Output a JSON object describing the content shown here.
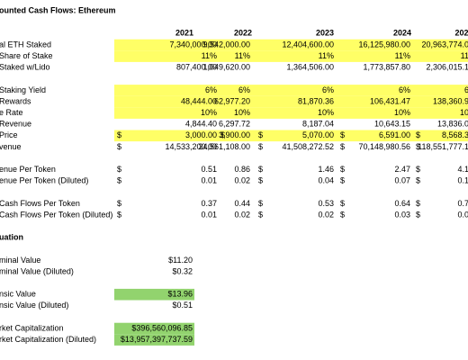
{
  "title": "ounted Cash Flows: Ethereum",
  "years": [
    "2021",
    "2022",
    "2023",
    "2024",
    "202"
  ],
  "rows": [
    {
      "label": "al ETH Staked",
      "highlight": "#ffff66",
      "dollars": [
        null,
        null,
        null,
        null,
        null
      ],
      "cells": [
        "7,340,000.00",
        "9,542,000.00",
        "12,404,600.00",
        "16,125,980.00",
        "20,963,774.0"
      ]
    },
    {
      "label": "Share of Stake",
      "highlight": "#ffff66",
      "dollars": [
        null,
        null,
        null,
        null,
        null
      ],
      "cells": [
        "11%",
        "11%",
        "11%",
        "11%",
        "11"
      ]
    },
    {
      "label": "Staked w/Lido",
      "dollars": [
        null,
        null,
        null,
        null,
        null
      ],
      "cells": [
        "807,400.00",
        "1,049,620.00",
        "1,364,506.00",
        "1,773,857.80",
        "2,306,015.1"
      ]
    },
    {
      "label": "Staking Yield",
      "highlight": "#ffff66",
      "dollars": [
        null,
        null,
        null,
        null,
        null
      ],
      "cells": [
        "6%",
        "6%",
        "6%",
        "6%",
        "6"
      ]
    },
    {
      "label": "Rewards",
      "highlight": "#ffff66",
      "dollars": [
        null,
        null,
        null,
        null,
        null
      ],
      "cells": [
        "48,444.00",
        "62,977.20",
        "81,870.36",
        "106,431.47",
        "138,360.9"
      ]
    },
    {
      "label": "e Rate",
      "highlight": "#ffff66",
      "dollars": [
        null,
        null,
        null,
        null,
        null
      ],
      "cells": [
        "10%",
        "10%",
        "10%",
        "10%",
        "10"
      ]
    },
    {
      "label": "Revenue",
      "dollars": [
        null,
        null,
        null,
        null,
        null
      ],
      "cells": [
        "4,844.40",
        "6,297.72",
        "8,187.04",
        "10,643.15",
        "13,836.0"
      ]
    },
    {
      "label": "Price",
      "highlight": "#ffff66",
      "dollars": [
        "$",
        "$",
        "$",
        "$",
        "$"
      ],
      "cells": [
        "3,000.00",
        "3,900.00",
        "5,070.00",
        "6,591.00",
        "8,568.3"
      ]
    },
    {
      "label": "venue",
      "dollars": [
        "$",
        null,
        "$",
        "$",
        "$"
      ],
      "cells": [
        "14,533,200.00",
        "24,561,108.00",
        "41,508,272.52",
        "70,148,980.56",
        "118,551,777.1"
      ]
    },
    {
      "label": "enue Per Token",
      "gap": true,
      "dollars": [
        "$",
        null,
        "$",
        "$",
        "$"
      ],
      "cells": [
        "0.51",
        "0.86",
        "1.46",
        "2.47",
        "4.1"
      ]
    },
    {
      "label": "enue Per Token (Diluted)",
      "dollars": [
        "$",
        null,
        "$",
        "$",
        "$"
      ],
      "cells": [
        "0.01",
        "0.02",
        "0.04",
        "0.07",
        "0.1"
      ]
    },
    {
      "label": "Cash Flows Per Token",
      "gap": true,
      "dollars": [
        "$",
        null,
        "$",
        "$",
        "$"
      ],
      "cells": [
        "0.37",
        "0.44",
        "0.53",
        "0.64",
        "0.7"
      ]
    },
    {
      "label": "Cash Flows Per Token (Diluted)",
      "dollars": [
        "$",
        null,
        "$",
        "$",
        "$"
      ],
      "cells": [
        "0.01",
        "0.02",
        "0.02",
        "0.03",
        "0.0"
      ]
    }
  ],
  "valuation": {
    "heading": "uation",
    "rows": [
      {
        "label": "minal Value",
        "value": "$11.20"
      },
      {
        "label": "minal Value (Diluted)",
        "value": "$0.32"
      },
      {
        "label": "nsic Value",
        "value": "$13.96",
        "highlight": "#92d36e",
        "gap": true
      },
      {
        "label": "nsic Value (Diluted)",
        "value": "$0.51"
      },
      {
        "label": "rket Capitalization",
        "value": "$396,560,096.85",
        "highlight": "#92d36e",
        "gap": true
      },
      {
        "label": "rket Capitalization (Diluted)",
        "value": "$13,957,397,737.59",
        "highlight": "#92d36e"
      }
    ]
  }
}
